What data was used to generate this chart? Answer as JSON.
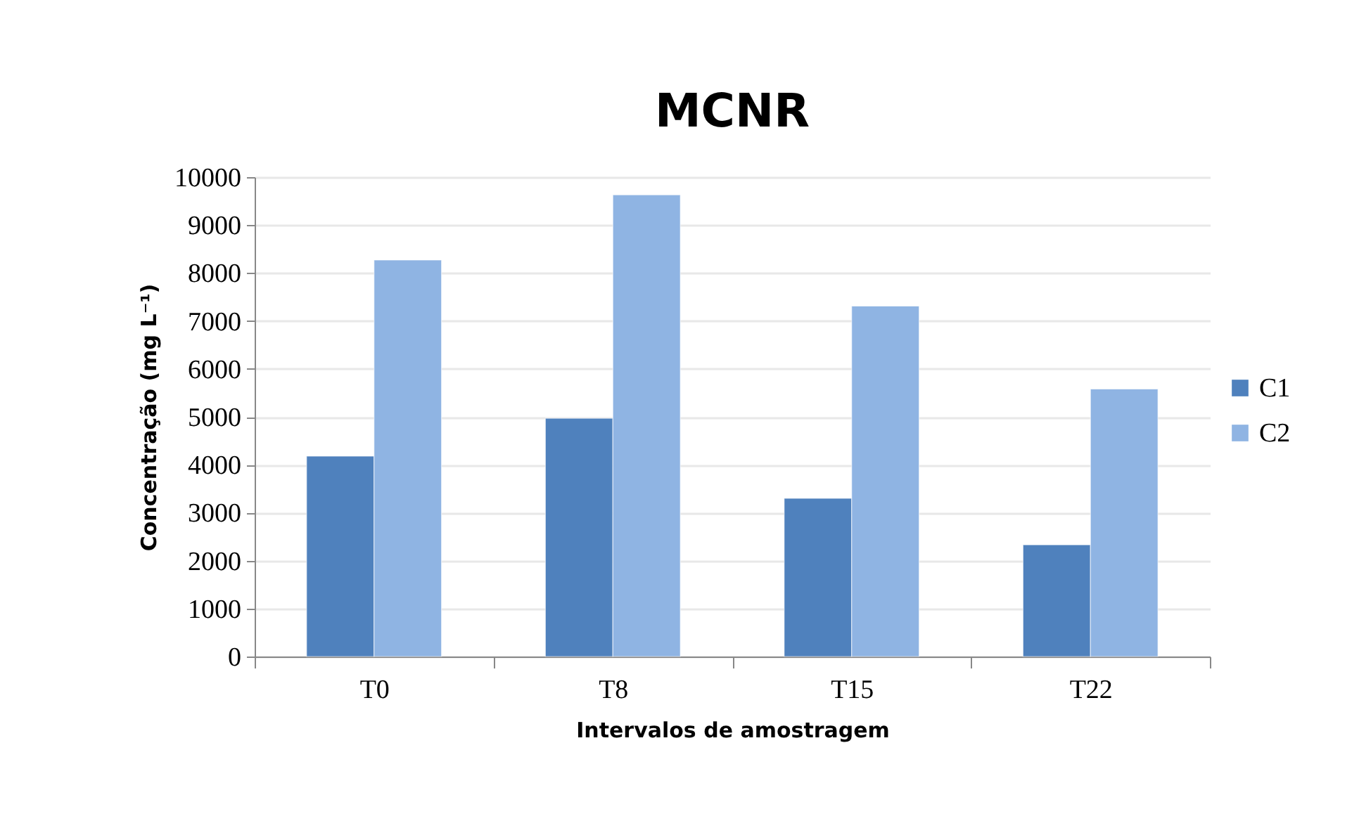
{
  "chart_data": {
    "type": "bar",
    "title": "MCNR",
    "xlabel": "Intervalos de amostragem",
    "ylabel": "Concentração (mg L⁻¹)",
    "categories": [
      "T0",
      "T8",
      "T15",
      "T22"
    ],
    "series": [
      {
        "name": "C1",
        "color": "#4f81bd",
        "values": [
          4180,
          4970,
          3300,
          2330
        ]
      },
      {
        "name": "C2",
        "color": "#8fb4e3",
        "values": [
          8270,
          9630,
          7310,
          5580
        ]
      }
    ],
    "ylim": [
      0,
      10000
    ],
    "yticks": [
      0,
      1000,
      2000,
      3000,
      4000,
      5000,
      6000,
      7000,
      8000,
      9000,
      10000
    ],
    "grid": "y",
    "legend": "right"
  }
}
